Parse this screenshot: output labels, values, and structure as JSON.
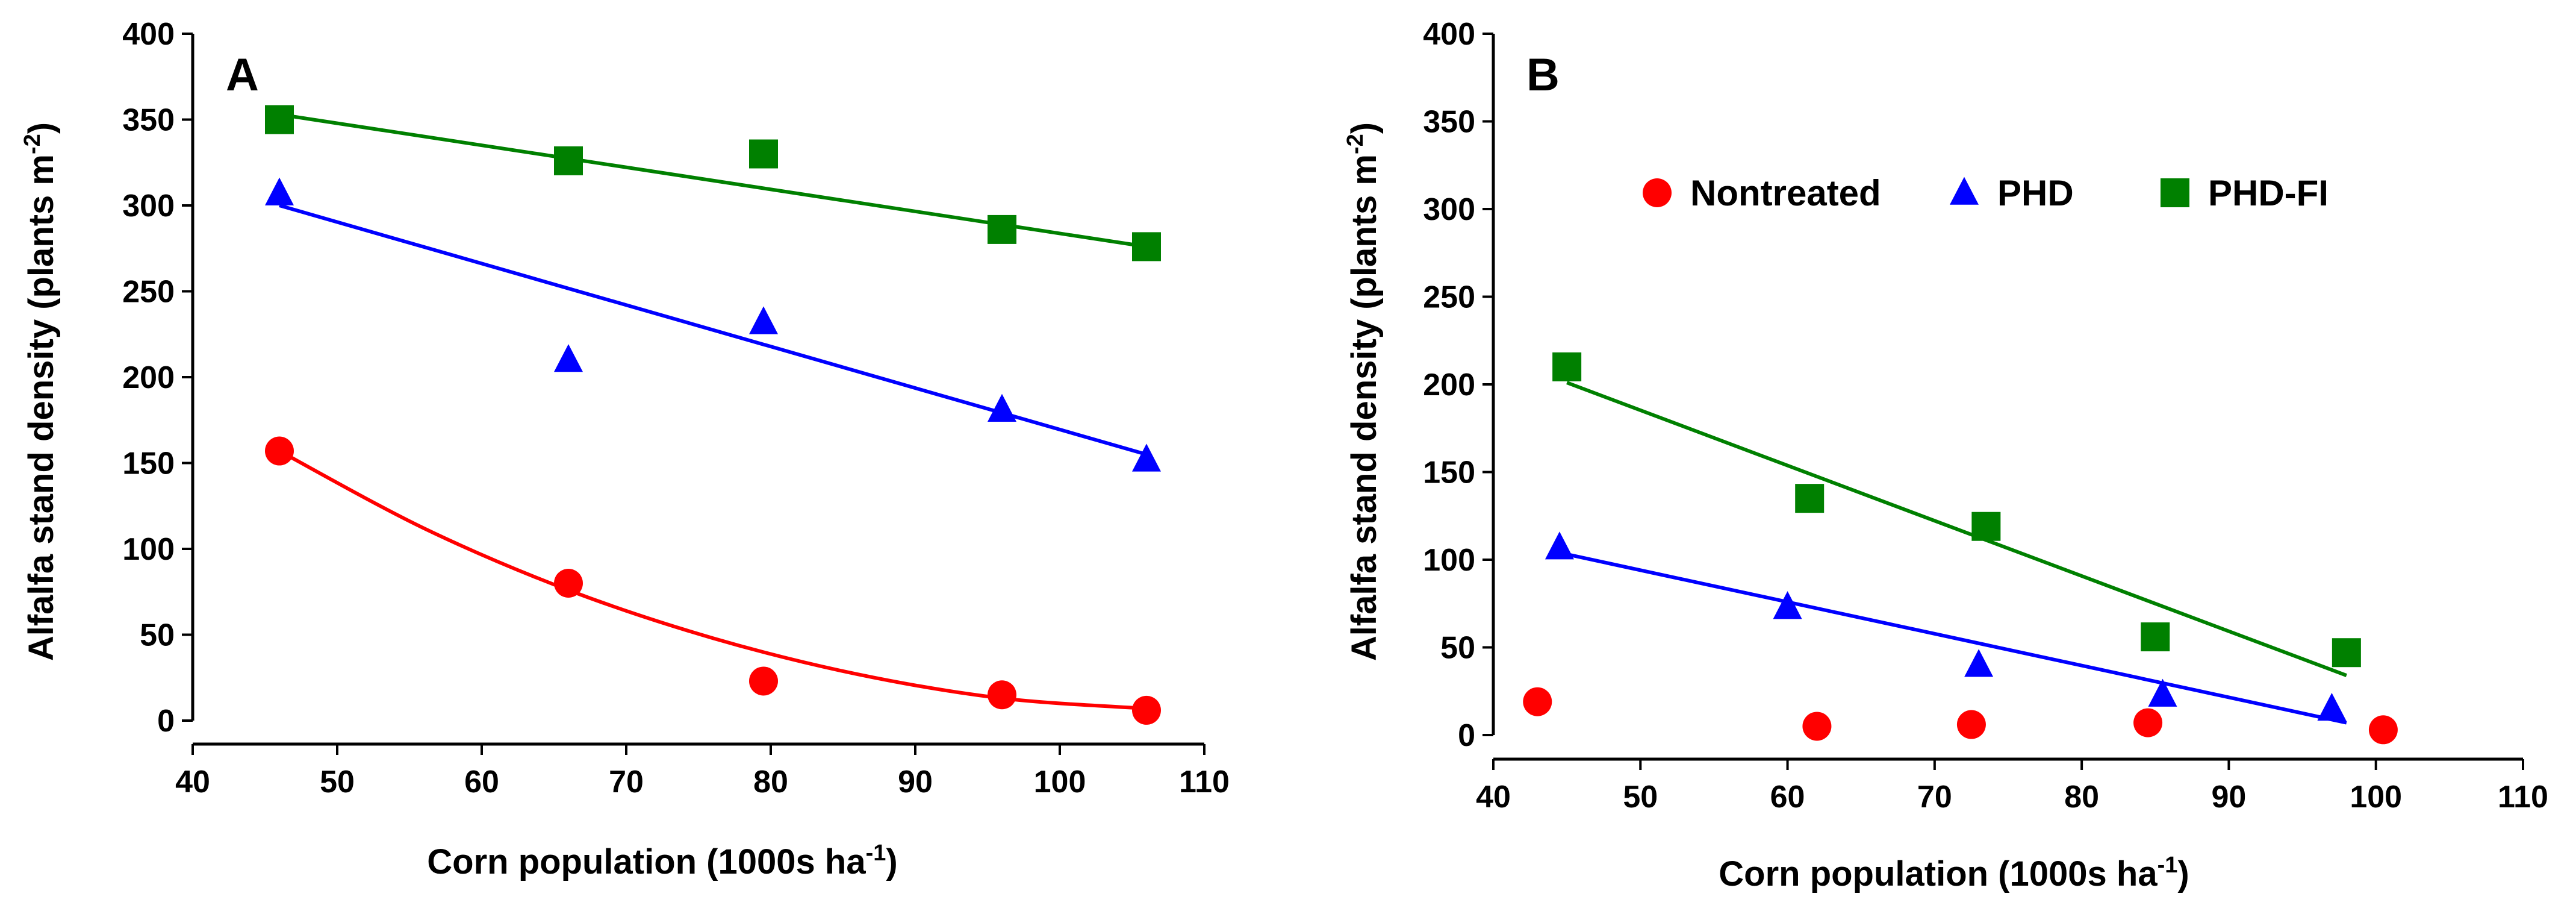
{
  "chart_data": [
    {
      "type": "scatter",
      "panel_label": "A",
      "xlabel": "Corn population (1000s ha",
      "xlabel_sup": "-1",
      "xlabel_suffix": ")",
      "ylabel": "Alfalfa stand density (plants m",
      "ylabel_sup": "-2",
      "ylabel_suffix": ")",
      "xlim": [
        40,
        110
      ],
      "ylim": [
        0,
        400
      ],
      "xticks": [
        40,
        50,
        60,
        70,
        80,
        90,
        100,
        110
      ],
      "yticks": [
        0,
        50,
        100,
        150,
        200,
        250,
        300,
        350,
        400
      ],
      "series": [
        {
          "name": "Nontreated",
          "marker": "circle",
          "color": "#ff0000",
          "x": [
            46,
            66,
            79.5,
            96,
            106
          ],
          "y": [
            157,
            80,
            23,
            15,
            6
          ],
          "fit": {
            "kind": "quadratic",
            "x": [
              46,
              56,
              66,
              76,
              86,
              96,
              106
            ],
            "y": [
              157,
              112,
              76,
              48,
              27,
              13,
              7
            ]
          }
        },
        {
          "name": "PHD",
          "marker": "triangle",
          "color": "#0000ff",
          "x": [
            46,
            66,
            79.5,
            96,
            106
          ],
          "y": [
            307,
            210,
            232,
            181,
            152
          ],
          "fit": {
            "kind": "linear",
            "x": [
              46,
              106
            ],
            "y": [
              300,
              155
            ]
          }
        },
        {
          "name": "PHD-FI",
          "marker": "square",
          "color": "#008000",
          "x": [
            46,
            66,
            79.5,
            96,
            106
          ],
          "y": [
            350,
            326,
            330,
            286,
            276
          ],
          "fit": {
            "kind": "linear",
            "x": [
              46,
              106
            ],
            "y": [
              353,
              276
            ]
          }
        }
      ]
    },
    {
      "type": "scatter",
      "panel_label": "B",
      "xlabel": "Corn population (1000s ha",
      "xlabel_sup": "-1",
      "xlabel_suffix": ")",
      "ylabel": "Alfalfa stand density (plants m",
      "ylabel_sup": "-2",
      "ylabel_suffix": ")",
      "xlim": [
        40,
        110
      ],
      "ylim": [
        0,
        400
      ],
      "xticks": [
        40,
        50,
        60,
        70,
        80,
        90,
        100,
        110
      ],
      "yticks": [
        0,
        50,
        100,
        150,
        200,
        250,
        300,
        350,
        400
      ],
      "legend": {
        "position": "upper-center",
        "entries": [
          "Nontreated",
          "PHD",
          "PHD-FI"
        ]
      },
      "series": [
        {
          "name": "Nontreated",
          "marker": "circle",
          "color": "#ff0000",
          "x": [
            43,
            62,
            72.5,
            84.5,
            100.5
          ],
          "y": [
            19,
            5,
            6,
            7,
            3
          ]
        },
        {
          "name": "PHD",
          "marker": "triangle",
          "color": "#0000ff",
          "x": [
            44.5,
            60,
            73,
            85.5,
            97
          ],
          "y": [
            107,
            73,
            40,
            23,
            15
          ],
          "fit": {
            "kind": "linear",
            "x": [
              44.5,
              98
            ],
            "y": [
              104,
              7
            ]
          }
        },
        {
          "name": "PHD-FI",
          "marker": "square",
          "color": "#008000",
          "x": [
            45,
            61.5,
            73.5,
            85,
            98
          ],
          "y": [
            210,
            135,
            119,
            56,
            47
          ],
          "fit": {
            "kind": "linear",
            "x": [
              45,
              98
            ],
            "y": [
              201,
              34
            ]
          }
        }
      ]
    }
  ]
}
